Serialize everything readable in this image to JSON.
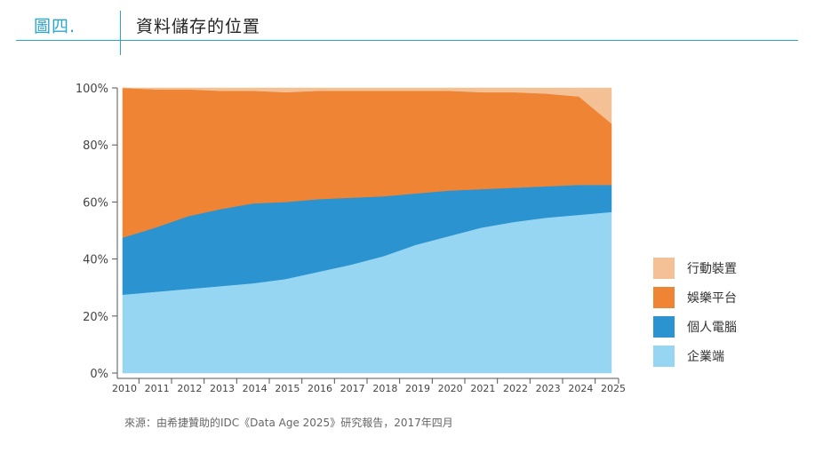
{
  "header": {
    "figure_label": "圖四.",
    "title": "資料儲存的位置"
  },
  "source_note": "來源：由希捷贊助的IDC《Data Age 2025》研究報告，2017年四月",
  "chart_data": {
    "type": "area",
    "stacked": true,
    "x": [
      "2010",
      "2011",
      "2012",
      "2013",
      "2014",
      "2015",
      "2016",
      "2017",
      "2018",
      "2019",
      "2020",
      "2021",
      "2022",
      "2023",
      "2024",
      "2025"
    ],
    "y_ticks": [
      "0%",
      "20%",
      "40%",
      "60%",
      "80%",
      "100%"
    ],
    "ylim": [
      0,
      100
    ],
    "legend_position": "right",
    "series": [
      {
        "name": "企業端",
        "color": "#97d6f2",
        "values": [
          27.5,
          28.5,
          29.5,
          30.5,
          31.5,
          33,
          35.5,
          38,
          41,
          45,
          48,
          51,
          53,
          54.5,
          55.5,
          56.5
        ]
      },
      {
        "name": "個人電腦",
        "color": "#2a93d0",
        "values": [
          20,
          22.5,
          25.5,
          27,
          28,
          27,
          25.5,
          23.5,
          21,
          18,
          16,
          13.5,
          12,
          11,
          10.5,
          9.5
        ]
      },
      {
        "name": "娛樂平台",
        "color": "#ee8434",
        "values": [
          52.5,
          48.5,
          44.5,
          41.5,
          39.5,
          38.5,
          38,
          37.5,
          37,
          36,
          35,
          34,
          33.5,
          32.5,
          31,
          21.5
        ]
      },
      {
        "name": "行動裝置",
        "color": "#f4c196",
        "values": [
          0,
          0.5,
          0.5,
          1,
          1,
          1.5,
          1,
          1,
          1,
          1,
          1,
          1.5,
          1.5,
          2,
          3,
          12.5
        ]
      }
    ]
  },
  "legend": [
    {
      "label": "行動裝置",
      "color": "#f4c196"
    },
    {
      "label": "娛樂平台",
      "color": "#ee8434"
    },
    {
      "label": "個人電腦",
      "color": "#2a93d0"
    },
    {
      "label": "企業端",
      "color": "#97d6f2"
    }
  ]
}
